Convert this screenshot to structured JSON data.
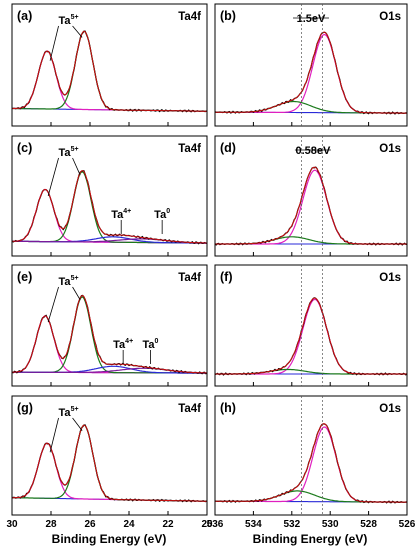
{
  "colors": {
    "raw": "#000000",
    "envelope": "#d01010",
    "ta5_high": "#e020c0",
    "ta5_low": "#1b7a1b",
    "background": "#2a2ad8",
    "ta4": "#2a2ad8",
    "ta0": "#7a1a9a",
    "o_lattice": "#e020c0",
    "o_defect": "#1b7a1b"
  },
  "axes": {
    "left_xlabel": "Binding Energy (eV)",
    "right_xlabel": "Binding Energy (eV)",
    "left_ticks": [
      "30",
      "28",
      "26",
      "24",
      "22",
      "20"
    ],
    "right_ticks": [
      "536",
      "534",
      "532",
      "530",
      "528",
      "526"
    ]
  },
  "chart_data": [
    {
      "type": "line",
      "panel": "(a)",
      "region": "Ta4f",
      "xlim": [
        30,
        20
      ],
      "annotations": [
        {
          "base": "Ta",
          "sup": "5+",
          "x": 27.1
        }
      ],
      "peaks": [
        {
          "component": "ta5_high",
          "center": 28.2,
          "height": 0.63,
          "width": 0.45
        },
        {
          "component": "ta5_low",
          "center": 26.3,
          "height": 0.85,
          "width": 0.45
        }
      ],
      "baseline": [
        0.06,
        0.03
      ]
    },
    {
      "type": "line",
      "panel": "(b)",
      "region": "O1s",
      "xlim": [
        536,
        526
      ],
      "annotations": [
        {
          "text": "1.5eV",
          "x": 531.0
        }
      ],
      "peaks": [
        {
          "component": "o_lattice",
          "center": 530.3,
          "height": 0.85,
          "width": 0.6
        },
        {
          "component": "o_defect",
          "center": 531.9,
          "height": 0.12,
          "width": 0.9
        }
      ],
      "baseline": [
        0.02,
        0.01
      ]
    },
    {
      "type": "line",
      "panel": "(c)",
      "region": "Ta4f",
      "xlim": [
        30,
        20
      ],
      "annotations": [
        {
          "base": "Ta",
          "sup": "5+",
          "x": 27.1
        },
        {
          "base": "Ta",
          "sup": "4+",
          "x": 24.4
        },
        {
          "base": "Ta",
          "sup": "0",
          "x": 22.3
        }
      ],
      "peaks": [
        {
          "component": "ta5_high",
          "center": 28.3,
          "height": 0.58,
          "width": 0.45
        },
        {
          "component": "ta5_low",
          "center": 26.4,
          "height": 0.78,
          "width": 0.45
        },
        {
          "component": "ta4",
          "center": 24.8,
          "height": 0.06,
          "width": 0.9
        },
        {
          "component": "ta0",
          "center": 23.3,
          "height": 0.04,
          "width": 1.2
        }
      ],
      "baseline": [
        0.03,
        0.01
      ]
    },
    {
      "type": "line",
      "panel": "(d)",
      "region": "O1s",
      "xlim": [
        536,
        526
      ],
      "annotations": [
        {
          "text": "0.58eV",
          "x": 530.9
        }
      ],
      "peaks": [
        {
          "component": "o_lattice",
          "center": 530.8,
          "height": 0.82,
          "width": 0.62
        },
        {
          "component": "o_defect",
          "center": 532.0,
          "height": 0.08,
          "width": 0.9
        }
      ],
      "baseline": [
        0.0,
        0.0
      ]
    },
    {
      "type": "line",
      "panel": "(e)",
      "region": "Ta4f",
      "xlim": [
        30,
        20
      ],
      "annotations": [
        {
          "base": "Ta",
          "sup": "5+",
          "x": 27.1
        },
        {
          "base": "Ta",
          "sup": "4+",
          "x": 24.3
        },
        {
          "base": "Ta",
          "sup": "0",
          "x": 22.9
        }
      ],
      "peaks": [
        {
          "component": "ta5_high",
          "center": 28.3,
          "height": 0.62,
          "width": 0.45
        },
        {
          "component": "ta5_low",
          "center": 26.4,
          "height": 0.83,
          "width": 0.45
        },
        {
          "component": "ta4",
          "center": 24.8,
          "height": 0.07,
          "width": 0.9
        },
        {
          "component": "ta0",
          "center": 23.2,
          "height": 0.05,
          "width": 1.2
        }
      ],
      "baseline": [
        0.02,
        0.01
      ]
    },
    {
      "type": "line",
      "panel": "(f)",
      "region": "O1s",
      "xlim": [
        536,
        526
      ],
      "annotations": [],
      "peaks": [
        {
          "component": "o_lattice",
          "center": 530.8,
          "height": 0.82,
          "width": 0.62
        },
        {
          "component": "o_defect",
          "center": 532.2,
          "height": 0.05,
          "width": 0.9
        }
      ],
      "baseline": [
        0.0,
        0.0
      ]
    },
    {
      "type": "line",
      "panel": "(g)",
      "region": "Ta4f",
      "xlim": [
        30,
        20
      ],
      "annotations": [
        {
          "base": "Ta",
          "sup": "5+",
          "x": 27.1
        }
      ],
      "peaks": [
        {
          "component": "ta5_high",
          "center": 28.2,
          "height": 0.62,
          "width": 0.45
        },
        {
          "component": "ta5_low",
          "center": 26.3,
          "height": 0.83,
          "width": 0.45
        }
      ],
      "baseline": [
        0.06,
        0.02
      ]
    },
    {
      "type": "line",
      "panel": "(h)",
      "region": "O1s",
      "xlim": [
        536,
        526
      ],
      "annotations": [],
      "peaks": [
        {
          "component": "o_lattice",
          "center": 530.3,
          "height": 0.84,
          "width": 0.6
        },
        {
          "component": "o_defect",
          "center": 531.7,
          "height": 0.12,
          "width": 0.9
        }
      ],
      "baseline": [
        0.02,
        0.01
      ]
    }
  ]
}
